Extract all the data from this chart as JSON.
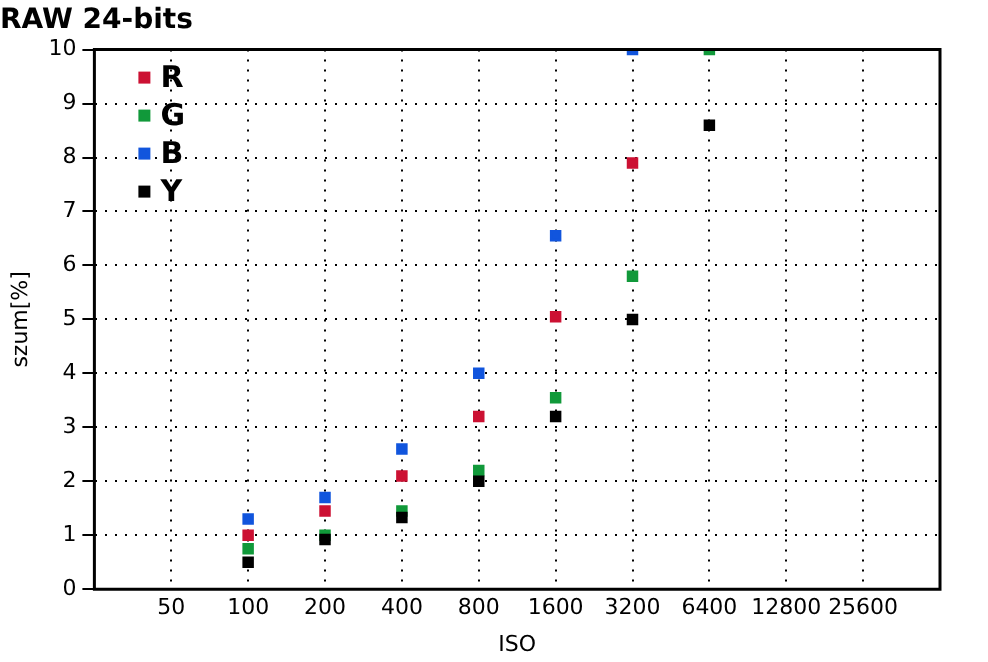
{
  "chart_data": {
    "type": "scatter",
    "title": "RAW 24-bits",
    "xlabel": "ISO",
    "ylabel": "szum[%]",
    "log": "x",
    "x": [
      100,
      200,
      400,
      800,
      1600,
      3200,
      6400
    ],
    "xlim": [
      25,
      51200
    ],
    "xticks": [
      50,
      100,
      200,
      400,
      800,
      1600,
      3200,
      6400,
      12800,
      25600
    ],
    "ylim": [
      0,
      10
    ],
    "yticks": [
      0,
      1,
      2,
      3,
      4,
      5,
      6,
      7,
      8,
      9,
      10
    ],
    "grid": true,
    "legend": "top left",
    "marker": "square",
    "series": [
      {
        "name": "R",
        "color": "#cc1133",
        "values": [
          1.0,
          1.45,
          2.1,
          3.2,
          5.05,
          7.9,
          null
        ]
      },
      {
        "name": "G",
        "color": "#11993a",
        "values": [
          0.75,
          1.0,
          1.45,
          2.2,
          3.55,
          5.8,
          10
        ]
      },
      {
        "name": "B",
        "color": "#1155dd",
        "values": [
          1.3,
          1.7,
          2.6,
          4.0,
          6.55,
          10,
          null
        ]
      },
      {
        "name": "Y",
        "color": "#000000",
        "values": [
          0.5,
          0.92,
          1.33,
          2.0,
          3.2,
          5.0,
          8.6
        ]
      }
    ]
  }
}
